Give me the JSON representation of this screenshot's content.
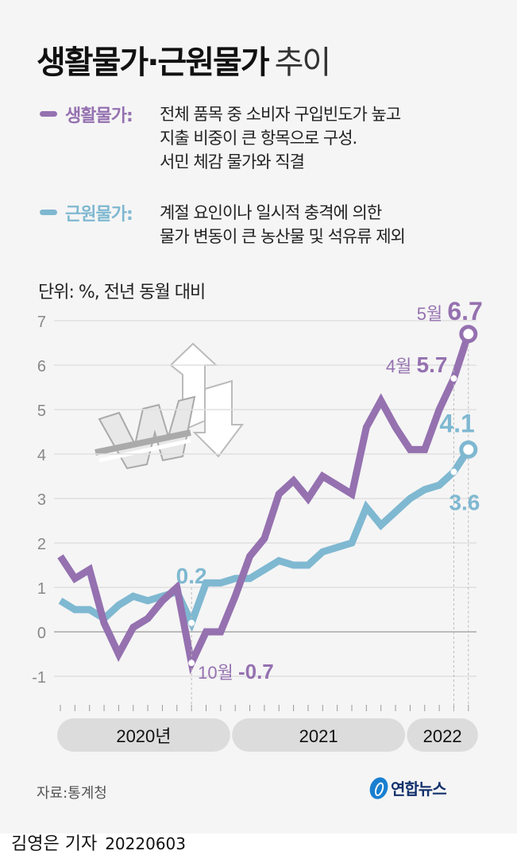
{
  "header": {
    "title_bold": "생활물가·근원물가",
    "title_light": "추이"
  },
  "legend": [
    {
      "name": "생활물가:",
      "color": "#9571b0",
      "lines": [
        "전체 품목 중 소비자 구입빈도가 높고",
        "지출 비중이 큰 항목으로 구성.",
        "서민 체감 물가와 직결"
      ]
    },
    {
      "name": "근원물가:",
      "color": "#7fb8d1",
      "lines": [
        "계절 요인이나 일시적 충격에 의한",
        "물가 변동이 큰 농산물 및 석유류 제외"
      ]
    }
  ],
  "unit_label": "단위: %, 전년 동월 대비",
  "chart_data": {
    "type": "line",
    "ylabel": "%",
    "ylim": [
      -1.7,
      7
    ],
    "yticks": [
      7,
      6,
      5,
      4,
      3,
      2,
      1,
      0,
      -1
    ],
    "grid": true,
    "x": [
      "2020-01",
      "2020-02",
      "2020-03",
      "2020-04",
      "2020-05",
      "2020-06",
      "2020-07",
      "2020-08",
      "2020-09",
      "2020-10",
      "2020-11",
      "2020-12",
      "2021-01",
      "2021-02",
      "2021-03",
      "2021-04",
      "2021-05",
      "2021-06",
      "2021-07",
      "2021-08",
      "2021-09",
      "2021-10",
      "2021-11",
      "2021-12",
      "2022-01",
      "2022-02",
      "2022-03",
      "2022-04",
      "2022-05"
    ],
    "year_labels": [
      {
        "label": "2020년",
        "start": 0,
        "end": 11
      },
      {
        "label": "2021",
        "start": 12,
        "end": 23
      },
      {
        "label": "2022",
        "start": 24,
        "end": 28
      }
    ],
    "series": [
      {
        "name": "생활물가",
        "color": "#9571b0",
        "values": [
          1.7,
          1.2,
          1.4,
          0.2,
          -0.5,
          0.1,
          0.3,
          0.7,
          1.0,
          -0.7,
          0.0,
          0.0,
          0.8,
          1.7,
          2.1,
          3.1,
          3.4,
          3.0,
          3.5,
          3.3,
          3.1,
          4.6,
          5.2,
          4.6,
          4.1,
          4.1,
          5.0,
          5.7,
          6.7
        ]
      },
      {
        "name": "근원물가",
        "color": "#7fb8d1",
        "values": [
          0.7,
          0.5,
          0.5,
          0.3,
          0.6,
          0.8,
          0.7,
          0.8,
          0.9,
          0.2,
          1.1,
          1.1,
          1.2,
          1.2,
          1.4,
          1.6,
          1.5,
          1.5,
          1.8,
          1.9,
          2.0,
          2.8,
          2.4,
          2.7,
          3.0,
          3.2,
          3.3,
          3.6,
          4.1
        ]
      }
    ],
    "annotations": [
      {
        "series": 0,
        "index": 9,
        "month": "10월",
        "value": "-0.7"
      },
      {
        "series": 1,
        "index": 9,
        "month": "",
        "value": "0.2"
      },
      {
        "series": 0,
        "index": 27,
        "month": "4월",
        "value": "5.7"
      },
      {
        "series": 0,
        "index": 28,
        "month": "5월",
        "value": "6.7"
      },
      {
        "series": 1,
        "index": 27,
        "month": "",
        "value": "3.6"
      },
      {
        "series": 1,
        "index": 28,
        "month": "",
        "value": "4.1"
      }
    ]
  },
  "footer": {
    "source": "자료:통계청",
    "logo_text": "연합뉴스",
    "byline": "김영은 기자",
    "date": "20220603"
  }
}
